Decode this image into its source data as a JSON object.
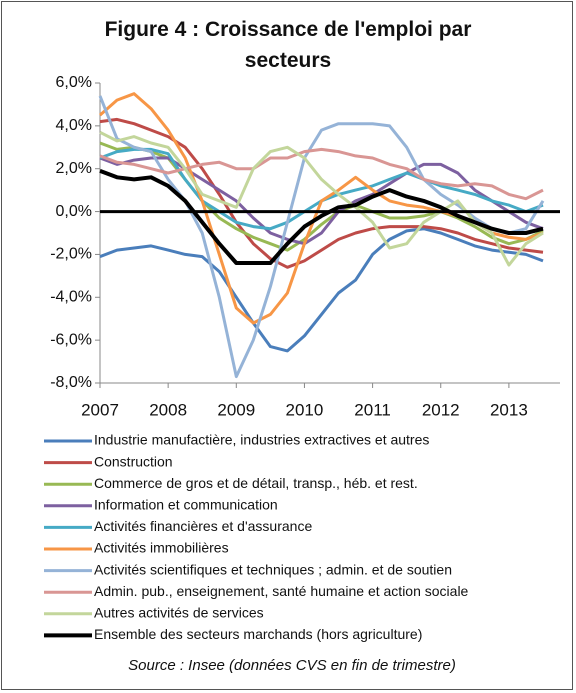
{
  "chart_data": {
    "type": "line",
    "title": "Figure 4 : Croissance de l'emploi par secteurs",
    "source": "Source : Insee (données CVS en fin de trimestre)",
    "x": [
      2007,
      2007.25,
      2007.5,
      2007.75,
      2008,
      2008.25,
      2008.5,
      2008.75,
      2009,
      2009.25,
      2009.5,
      2009.75,
      2010,
      2010.25,
      2010.5,
      2010.75,
      2011,
      2011.25,
      2011.5,
      2011.75,
      2012,
      2012.25,
      2012.5,
      2012.75,
      2013,
      2013.25,
      2013.5
    ],
    "xlim": [
      2007,
      2013.75
    ],
    "xticks": [
      2007,
      2008,
      2009,
      2010,
      2011,
      2012,
      2013
    ],
    "ylim": [
      -8,
      6
    ],
    "yticks": [
      {
        "value": -8,
        "label": "-8,0%"
      },
      {
        "value": -6,
        "label": "-6,0%"
      },
      {
        "value": -4,
        "label": "-4,0%"
      },
      {
        "value": -2,
        "label": "-2,0%"
      },
      {
        "value": 0,
        "label": "0,0%"
      },
      {
        "value": 2,
        "label": "2,0%"
      },
      {
        "value": 4,
        "label": "4,0%"
      },
      {
        "value": 6,
        "label": "6,0%"
      }
    ],
    "grid": false,
    "series": [
      {
        "name": "Industrie manufactière, industries extractives et autres",
        "color": "#4a7ebb",
        "values": [
          -2.1,
          -1.8,
          -1.7,
          -1.6,
          -1.8,
          -2.0,
          -2.1,
          -2.8,
          -4.0,
          -5.2,
          -6.3,
          -6.5,
          -5.8,
          -4.8,
          -3.8,
          -3.2,
          -2.0,
          -1.3,
          -0.9,
          -0.8,
          -1.0,
          -1.3,
          -1.6,
          -1.8,
          -1.9,
          -2.0,
          -2.3
        ]
      },
      {
        "name": "Construction",
        "color": "#be4b48",
        "values": [
          4.2,
          4.3,
          4.1,
          3.8,
          3.5,
          3.0,
          2.0,
          0.8,
          -0.5,
          -1.5,
          -2.2,
          -2.6,
          -2.3,
          -1.8,
          -1.3,
          -1.0,
          -0.8,
          -0.7,
          -0.7,
          -0.7,
          -0.8,
          -1.0,
          -1.3,
          -1.5,
          -1.7,
          -1.8,
          -1.9
        ]
      },
      {
        "name": "Commerce de gros et de détail, transp., héb. et rest.",
        "color": "#98b954",
        "values": [
          3.2,
          2.9,
          3.0,
          2.8,
          2.5,
          1.5,
          0.5,
          -0.3,
          -0.8,
          -1.2,
          -1.5,
          -1.8,
          -1.3,
          -0.6,
          0.0,
          0.3,
          0.0,
          -0.3,
          -0.3,
          -0.2,
          0.0,
          -0.3,
          -0.7,
          -1.2,
          -1.5,
          -1.3,
          -0.9
        ]
      },
      {
        "name": "Information et communication",
        "color": "#7d60a0",
        "values": [
          2.5,
          2.2,
          2.4,
          2.5,
          2.5,
          2.0,
          1.5,
          1.0,
          0.5,
          -0.3,
          -1.0,
          -1.3,
          -1.5,
          -1.0,
          0.0,
          0.5,
          0.8,
          1.3,
          1.8,
          2.2,
          2.2,
          1.8,
          1.0,
          0.5,
          0.0,
          -0.5,
          -0.8
        ]
      },
      {
        "name": "Activités financières et d'assurance",
        "color": "#46aac5",
        "values": [
          2.5,
          2.8,
          2.9,
          2.9,
          2.7,
          1.5,
          0.5,
          0.0,
          -0.5,
          -0.7,
          -0.8,
          -0.5,
          0.0,
          0.5,
          0.8,
          1.0,
          1.2,
          1.5,
          1.8,
          1.5,
          1.2,
          1.0,
          0.8,
          0.5,
          0.3,
          0.0,
          0.3
        ]
      },
      {
        "name": "Activités immobilières",
        "color": "#f79646",
        "values": [
          4.5,
          5.2,
          5.5,
          4.8,
          3.8,
          2.5,
          0.5,
          -2.0,
          -4.5,
          -5.2,
          -4.8,
          -3.8,
          -1.5,
          0.5,
          1.0,
          1.6,
          1.0,
          0.5,
          0.3,
          0.2,
          0.0,
          -0.2,
          -0.5,
          -1.0,
          -1.2,
          -1.3,
          -1.0
        ]
      },
      {
        "name": "Activités scientifiques et techniques ; admin. et de soutien",
        "color": "#95b3d7",
        "values": [
          5.4,
          3.4,
          3.0,
          2.8,
          1.5,
          0.5,
          -1.0,
          -4.0,
          -7.7,
          -6.0,
          -3.5,
          -0.5,
          2.5,
          3.8,
          4.1,
          4.1,
          4.1,
          4.0,
          3.0,
          1.5,
          0.8,
          0.3,
          -0.3,
          -0.8,
          -1.0,
          -0.8,
          0.5
        ]
      },
      {
        "name": "Admin. pub., enseignement, santé humaine et action sociale",
        "color": "#d99694",
        "values": [
          2.6,
          2.3,
          2.2,
          2.0,
          1.8,
          2.0,
          2.2,
          2.3,
          2.0,
          2.0,
          2.5,
          2.5,
          2.8,
          2.9,
          2.8,
          2.6,
          2.5,
          2.2,
          2.0,
          1.5,
          1.3,
          1.2,
          1.3,
          1.2,
          0.8,
          0.6,
          1.0
        ]
      },
      {
        "name": "Autres activités de services",
        "color": "#c3d69b",
        "values": [
          3.7,
          3.3,
          3.5,
          3.2,
          3.0,
          2.0,
          0.8,
          0.5,
          0.2,
          2.0,
          2.8,
          3.0,
          2.5,
          1.5,
          0.8,
          0.2,
          -0.5,
          -1.7,
          -1.5,
          -0.5,
          0.0,
          0.5,
          -0.5,
          -1.0,
          -2.5,
          -1.5,
          -1.0
        ]
      },
      {
        "name": "Ensemble des secteurs marchands (hors agriculture)",
        "color": "#000000",
        "values": [
          1.9,
          1.6,
          1.5,
          1.6,
          1.2,
          0.5,
          -0.5,
          -1.5,
          -2.4,
          -2.4,
          -2.4,
          -1.5,
          -0.7,
          -0.2,
          0.2,
          0.3,
          0.7,
          1.0,
          0.7,
          0.5,
          0.2,
          -0.2,
          -0.5,
          -0.8,
          -1.0,
          -1.0,
          -0.8
        ]
      }
    ]
  }
}
